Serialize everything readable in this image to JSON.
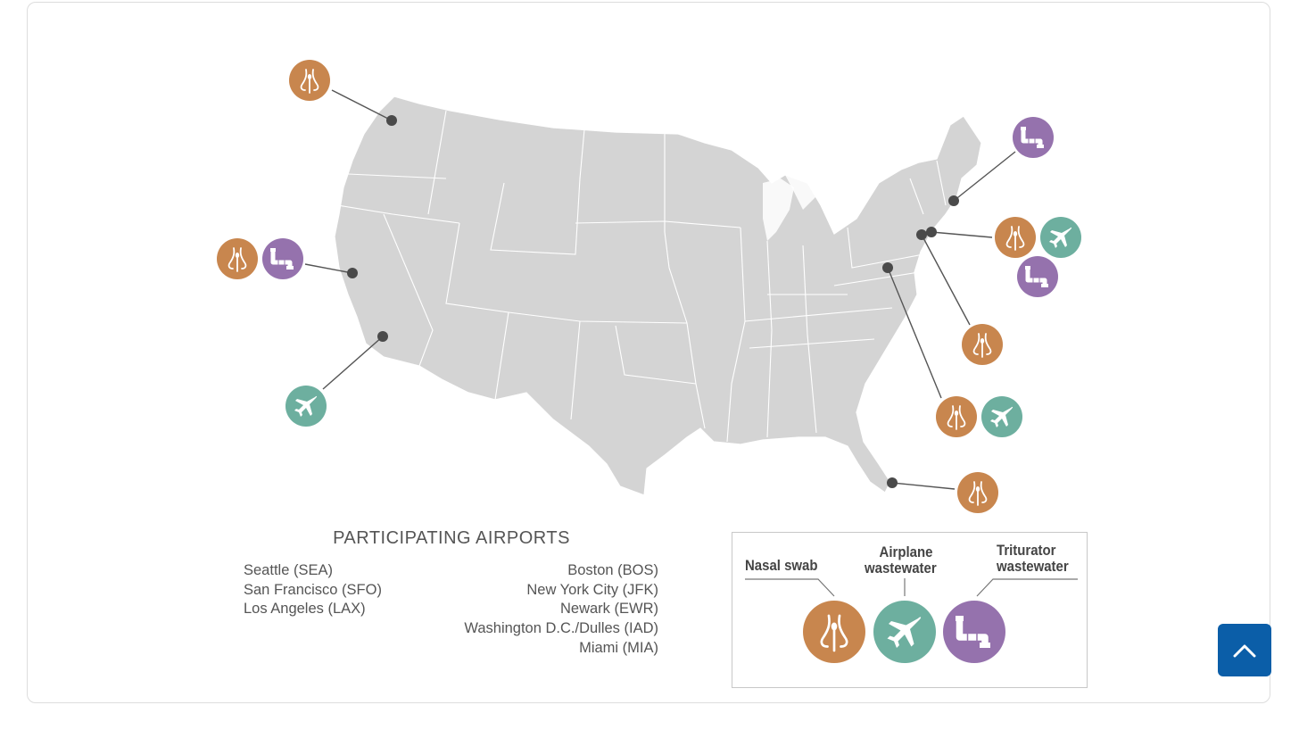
{
  "colors": {
    "nasal": "#c8864e",
    "airplane": "#6daf9f",
    "triturator": "#9572ad",
    "map_fill": "#d4d4d4",
    "pin": "#4a4a4a",
    "back_to_top": "#0b5ea8"
  },
  "title": "PARTICIPATING AIRPORTS",
  "airports_left": [
    "Seattle (SEA)",
    "San Francisco (SFO)",
    "Los Angeles (LAX)"
  ],
  "airports_right": [
    "Boston (BOS)",
    "New York City (JFK)",
    "Newark (EWR)",
    "Washington D.C./Dulles (IAD)",
    "Miami (MIA)"
  ],
  "legend": {
    "nasal_line1": "Nasal swab",
    "airplane_line1": "Airplane",
    "airplane_line2": "wastewater",
    "triturator_line1": "Triturator",
    "triturator_line2": "wastewater"
  },
  "icons": {
    "nasal": "nasal-swab-icon",
    "airplane": "airplane-icon",
    "triturator": "triturator-pipe-icon",
    "back_to_top": "chevron-up-icon"
  },
  "airport_sampling": {
    "SEA": [
      "nasal"
    ],
    "SFO": [
      "nasal",
      "triturator"
    ],
    "LAX": [
      "airplane"
    ],
    "BOS": [
      "triturator"
    ],
    "JFK": [
      "nasal",
      "airplane",
      "triturator"
    ],
    "EWR": [
      "nasal"
    ],
    "IAD": [
      "nasal",
      "airplane"
    ],
    "MIA": [
      "nasal"
    ]
  }
}
